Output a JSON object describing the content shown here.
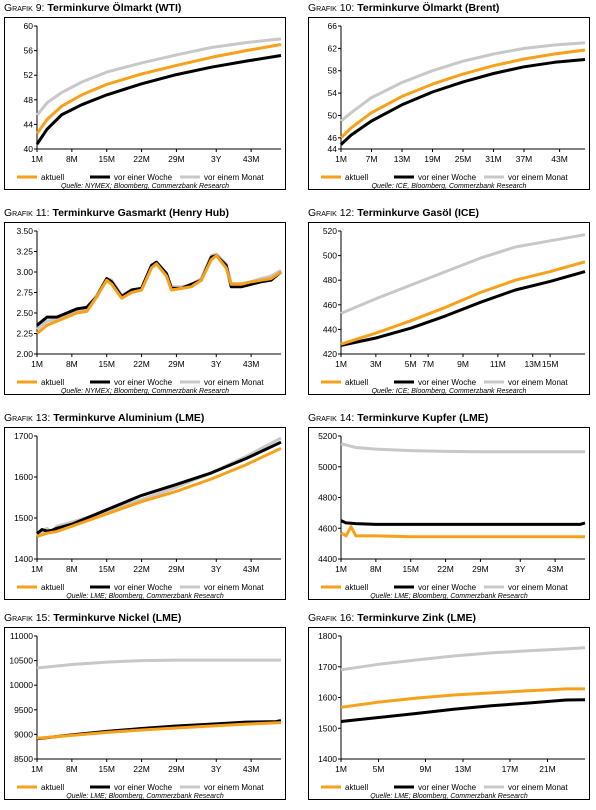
{
  "legend_labels": [
    "aktuell",
    "vor einer Woche",
    "vor einem Monat"
  ],
  "colors": {
    "aktuell": "#f7a11a",
    "woche": "#000000",
    "monat": "#c8c8c8"
  },
  "charts": [
    {
      "id": "wti",
      "title_prefix": "Grafik 9:",
      "title": "Terminkurve Ölmarkt (WTI)",
      "source": "Quelle: NYMEX; Bloomberg, Commerzbank Research"
    },
    {
      "id": "brent",
      "title_prefix": "Grafik 10:",
      "title": "Terminkurve Ölmarkt (Brent)",
      "source": "Quelle: ICE, Bloomberg, Commerzbank Research"
    },
    {
      "id": "gas",
      "title_prefix": "Grafik 11:",
      "title": "Terminkurve Gasmarkt (Henry Hub)",
      "source": "Quelle: NYMEX; Bloomberg, Commerzbank Research"
    },
    {
      "id": "gasoil",
      "title_prefix": "Grafik 12:",
      "title": "Terminkurve Gasöl (ICE)",
      "source": "Quelle: ICE; Bloomberg, Commerzbank Research"
    },
    {
      "id": "alu",
      "title_prefix": "Grafik 13:",
      "title": "Terminkurve Aluminium (LME)",
      "source": "Quelle: LME; Bloomberg, Commerzbank Research"
    },
    {
      "id": "kupfer",
      "title_prefix": "Grafik 14:",
      "title": "Terminkurve Kupfer (LME)",
      "source": "Quelle: LME; Bloomberg, Commerzbank Research"
    },
    {
      "id": "nickel",
      "title_prefix": "Grafik 15:",
      "title": "Terminkurve Nickel (LME)",
      "source": "Quelle: LME; Bloomberg, Commerzbank Research"
    },
    {
      "id": "zink",
      "title_prefix": "Grafik 16:",
      "title": "Terminkurve Zink (LME)",
      "source": "Quelle: LME; Bloomberg, Commerzbank Research"
    }
  ],
  "chart_data": [
    {
      "type": "line",
      "id": "wti",
      "categories": [
        "1M",
        "8M",
        "15M",
        "22M",
        "29M",
        "3Y",
        "43M"
      ],
      "ylim": [
        40,
        60
      ],
      "yticks": [
        40,
        44,
        48,
        52,
        56,
        60
      ],
      "legend_position": "bottom",
      "x_count": 50,
      "series": [
        {
          "name": "aktuell",
          "x": [
            1,
            3,
            6,
            10,
            15,
            22,
            29,
            36,
            43,
            50
          ],
          "y": [
            42.5,
            44.8,
            47.0,
            48.8,
            50.5,
            52.2,
            53.6,
            54.9,
            56.0,
            57.0
          ]
        },
        {
          "name": "vor einer Woche",
          "x": [
            1,
            3,
            6,
            10,
            15,
            22,
            29,
            36,
            43,
            50
          ],
          "y": [
            40.8,
            43.2,
            45.6,
            47.2,
            48.8,
            50.6,
            52.1,
            53.3,
            54.3,
            55.2
          ]
        },
        {
          "name": "vor einem Monat",
          "x": [
            1,
            3,
            6,
            10,
            15,
            22,
            29,
            36,
            43,
            50
          ],
          "y": [
            45.5,
            47.5,
            49.2,
            50.9,
            52.5,
            54.0,
            55.3,
            56.5,
            57.3,
            57.9
          ]
        }
      ]
    },
    {
      "type": "line",
      "id": "brent",
      "categories": [
        "1M",
        "7M",
        "13M",
        "19M",
        "25M",
        "31M",
        "37M",
        "43M"
      ],
      "ylim": [
        44,
        66
      ],
      "yticks": [
        44,
        46,
        50,
        54,
        58,
        62,
        66
      ],
      "legend_position": "bottom",
      "x_count": 49,
      "series": [
        {
          "name": "aktuell",
          "x": [
            1,
            3,
            7,
            13,
            19,
            25,
            31,
            37,
            43,
            49
          ],
          "y": [
            46.0,
            47.8,
            50.5,
            53.4,
            55.6,
            57.4,
            58.9,
            60.1,
            61.0,
            61.7
          ]
        },
        {
          "name": "vor einer Woche",
          "x": [
            1,
            3,
            7,
            13,
            19,
            25,
            31,
            37,
            43,
            49
          ],
          "y": [
            44.8,
            46.5,
            49.0,
            51.9,
            54.2,
            56.0,
            57.5,
            58.7,
            59.5,
            60.0
          ]
        },
        {
          "name": "vor einem Monat",
          "x": [
            1,
            3,
            7,
            13,
            19,
            25,
            31,
            37,
            43,
            49
          ],
          "y": [
            49.0,
            50.5,
            53.2,
            55.9,
            58.0,
            59.7,
            61.0,
            62.0,
            62.6,
            63.0
          ]
        }
      ]
    },
    {
      "type": "line",
      "id": "gas",
      "categories": [
        "1M",
        "8M",
        "15M",
        "22M",
        "29M",
        "3Y",
        "43M"
      ],
      "ylim": [
        2.0,
        3.5
      ],
      "yticks": [
        2.0,
        2.25,
        2.5,
        2.75,
        3.0,
        3.25,
        3.5
      ],
      "legend_position": "bottom",
      "x_count": 50,
      "series": [
        {
          "name": "aktuell",
          "x": [
            1,
            3,
            5,
            7,
            9,
            11,
            13,
            15,
            16,
            18,
            20,
            22,
            24,
            25,
            27,
            28,
            30,
            32,
            34,
            36,
            37,
            39,
            40,
            42,
            44,
            46,
            48,
            50
          ],
          "y": [
            2.25,
            2.35,
            2.4,
            2.45,
            2.5,
            2.52,
            2.7,
            2.9,
            2.85,
            2.68,
            2.75,
            2.78,
            3.05,
            3.1,
            2.95,
            2.78,
            2.8,
            2.82,
            2.9,
            3.15,
            3.2,
            3.05,
            2.85,
            2.85,
            2.88,
            2.9,
            2.92,
            3.0
          ]
        },
        {
          "name": "vor einer Woche",
          "x": [
            1,
            3,
            5,
            7,
            9,
            11,
            13,
            15,
            16,
            18,
            20,
            22,
            24,
            25,
            27,
            28,
            30,
            32,
            34,
            36,
            37,
            39,
            40,
            42,
            44,
            46,
            48,
            50
          ],
          "y": [
            2.35,
            2.45,
            2.45,
            2.5,
            2.55,
            2.57,
            2.7,
            2.92,
            2.88,
            2.7,
            2.78,
            2.8,
            3.08,
            3.12,
            2.98,
            2.8,
            2.8,
            2.85,
            2.9,
            3.18,
            3.2,
            3.08,
            2.82,
            2.82,
            2.85,
            2.88,
            2.9,
            3.0
          ]
        },
        {
          "name": "vor einem Monat",
          "x": [
            1,
            3,
            5,
            7,
            9,
            11,
            13,
            15,
            16,
            18,
            20,
            22,
            24,
            25,
            27,
            28,
            30,
            32,
            34,
            36,
            37,
            39,
            40,
            42,
            44,
            46,
            48,
            50
          ],
          "y": [
            2.3,
            2.4,
            2.42,
            2.48,
            2.52,
            2.55,
            2.72,
            2.92,
            2.9,
            2.72,
            2.78,
            2.8,
            3.08,
            3.12,
            2.98,
            2.82,
            2.82,
            2.85,
            2.92,
            3.2,
            3.22,
            3.1,
            2.86,
            2.86,
            2.88,
            2.92,
            2.95,
            3.02
          ]
        }
      ]
    },
    {
      "type": "line",
      "id": "gasoil",
      "categories": [
        "1M",
        "3M",
        "5M",
        "7M",
        "9M",
        "11M",
        "13M",
        "15M"
      ],
      "ylim": [
        420,
        520
      ],
      "yticks": [
        420,
        440,
        460,
        480,
        500,
        520
      ],
      "legend_position": "bottom",
      "x_count": 15,
      "series": [
        {
          "name": "aktuell",
          "x": [
            1,
            3,
            5,
            7,
            9,
            11,
            13,
            15
          ],
          "y": [
            428,
            437,
            447,
            458,
            470,
            480,
            487,
            495
          ]
        },
        {
          "name": "vor einer Woche",
          "x": [
            1,
            3,
            5,
            7,
            9,
            11,
            13,
            15
          ],
          "y": [
            427,
            433,
            441,
            451,
            462,
            472,
            479,
            487
          ]
        },
        {
          "name": "vor einem Monat",
          "x": [
            1,
            3,
            5,
            7,
            9,
            11,
            13,
            15
          ],
          "y": [
            453,
            465,
            476,
            487,
            498,
            507,
            512,
            517
          ]
        }
      ]
    },
    {
      "type": "line",
      "id": "alu",
      "categories": [
        "1M",
        "8M",
        "15M",
        "22M",
        "29M",
        "3Y",
        "43M"
      ],
      "ylim": [
        1400,
        1700
      ],
      "yticks": [
        1400,
        1500,
        1600,
        1700
      ],
      "legend_position": "bottom",
      "x_count": 50,
      "series": [
        {
          "name": "aktuell",
          "x": [
            1,
            3,
            5,
            8,
            15,
            22,
            29,
            36,
            43,
            50
          ],
          "y": [
            1455,
            1463,
            1467,
            1480,
            1510,
            1540,
            1565,
            1595,
            1630,
            1670
          ]
        },
        {
          "name": "vor einer Woche",
          "x": [
            1,
            2,
            3,
            4,
            5,
            8,
            15,
            22,
            29,
            36,
            43,
            50
          ],
          "y": [
            1462,
            1472,
            1468,
            1470,
            1475,
            1485,
            1520,
            1555,
            1582,
            1610,
            1645,
            1685
          ]
        },
        {
          "name": "vor einem Monat",
          "x": [
            1,
            2,
            3,
            4,
            5,
            8,
            15,
            22,
            29,
            36,
            43,
            50
          ],
          "y": [
            1458,
            1465,
            1475,
            1466,
            1480,
            1490,
            1515,
            1545,
            1575,
            1610,
            1650,
            1695
          ]
        }
      ]
    },
    {
      "type": "line",
      "id": "kupfer",
      "categories": [
        "1M",
        "8M",
        "15M",
        "22M",
        "29M",
        "3Y",
        "43M"
      ],
      "ylim": [
        4400,
        5200
      ],
      "yticks": [
        4400,
        4600,
        4800,
        5000,
        5200
      ],
      "legend_position": "bottom",
      "x_count": 50,
      "series": [
        {
          "name": "aktuell",
          "x": [
            1,
            2,
            3,
            4,
            5,
            8,
            15,
            22,
            29,
            36,
            43,
            50
          ],
          "y": [
            4570,
            4550,
            4610,
            4550,
            4550,
            4550,
            4545,
            4545,
            4545,
            4545,
            4545,
            4545
          ]
        },
        {
          "name": "vor einer Woche",
          "x": [
            1,
            2,
            4,
            8,
            15,
            22,
            29,
            36,
            43,
            49,
            50
          ],
          "y": [
            4650,
            4635,
            4630,
            4625,
            4625,
            4625,
            4625,
            4625,
            4625,
            4625,
            4635
          ]
        },
        {
          "name": "vor einem Monat",
          "x": [
            1,
            4,
            8,
            15,
            22,
            29,
            36,
            43,
            50
          ],
          "y": [
            5150,
            5125,
            5115,
            5105,
            5100,
            5098,
            5098,
            5098,
            5098
          ]
        }
      ]
    },
    {
      "type": "line",
      "id": "nickel",
      "categories": [
        "1M",
        "8M",
        "15M",
        "22M",
        "29M",
        "3Y",
        "43M"
      ],
      "ylim": [
        8500,
        11000
      ],
      "yticks": [
        8500,
        9000,
        9500,
        10000,
        10500,
        11000
      ],
      "legend_position": "bottom",
      "x_count": 50,
      "series": [
        {
          "name": "aktuell",
          "x": [
            1,
            8,
            15,
            22,
            29,
            36,
            43,
            50
          ],
          "y": [
            8920,
            8980,
            9040,
            9090,
            9130,
            9170,
            9210,
            9240
          ]
        },
        {
          "name": "vor einer Woche",
          "x": [
            1,
            8,
            15,
            22,
            29,
            36,
            43,
            49,
            50
          ],
          "y": [
            8910,
            8990,
            9060,
            9120,
            9170,
            9210,
            9250,
            9260,
            9280
          ]
        },
        {
          "name": "vor einem Monat",
          "x": [
            1,
            8,
            15,
            22,
            29,
            36,
            43,
            50
          ],
          "y": [
            10350,
            10420,
            10470,
            10500,
            10510,
            10510,
            10510,
            10510
          ]
        }
      ]
    },
    {
      "type": "line",
      "id": "zink",
      "categories": [
        "1M",
        "5M",
        "9M",
        "13M",
        "17M",
        "21M"
      ],
      "ylim": [
        1400,
        1800
      ],
      "yticks": [
        1400,
        1500,
        1600,
        1700,
        1800
      ],
      "legend_position": "bottom",
      "x_count": 27,
      "series": [
        {
          "name": "aktuell",
          "x": [
            1,
            5,
            9,
            13,
            17,
            21,
            25,
            27
          ],
          "y": [
            1568,
            1585,
            1598,
            1608,
            1615,
            1622,
            1628,
            1628
          ]
        },
        {
          "name": "vor einer Woche",
          "x": [
            1,
            5,
            9,
            13,
            17,
            21,
            25,
            27
          ],
          "y": [
            1522,
            1535,
            1548,
            1562,
            1573,
            1582,
            1592,
            1593
          ]
        },
        {
          "name": "vor einem Monat",
          "x": [
            1,
            5,
            9,
            13,
            17,
            21,
            25,
            27
          ],
          "y": [
            1690,
            1708,
            1722,
            1735,
            1745,
            1752,
            1758,
            1762
          ]
        }
      ]
    }
  ]
}
